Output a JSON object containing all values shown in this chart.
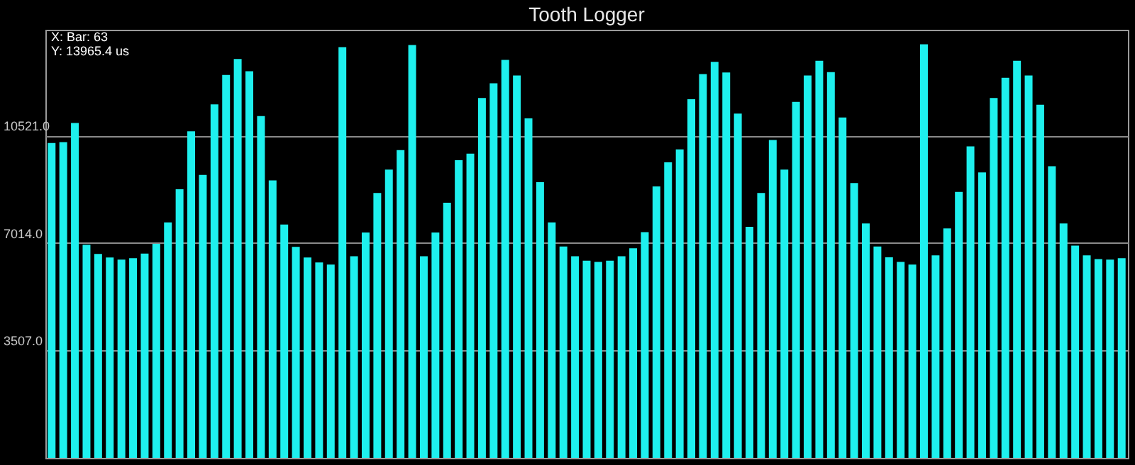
{
  "chart_data": {
    "type": "bar",
    "title": "Tooth Logger",
    "annotations": [
      "X: Bar: 63",
      "Y: 13965.4 us"
    ],
    "categories": [
      null,
      null,
      null,
      null,
      null,
      null,
      null,
      null,
      null,
      null,
      null,
      null,
      null,
      null,
      null,
      null,
      null,
      null,
      null,
      null,
      null,
      null,
      null,
      null,
      null,
      null,
      null,
      null,
      null,
      null,
      null,
      null,
      null,
      null,
      null,
      null,
      null,
      null,
      null,
      null,
      null,
      null,
      null,
      null,
      null,
      null,
      null,
      null,
      null,
      null,
      null,
      null,
      null,
      null,
      null,
      null,
      null,
      null,
      null,
      null,
      null,
      null,
      null,
      null,
      null,
      null,
      null,
      null,
      null,
      null,
      null,
      null,
      null,
      null,
      null,
      null,
      null,
      null,
      null,
      null,
      null,
      null,
      null,
      null,
      null,
      null,
      null,
      null,
      null,
      null,
      null,
      null,
      null
    ],
    "values": [
      10280,
      10310,
      10930,
      6960,
      6660,
      6540,
      6470,
      6520,
      6670,
      6990,
      7690,
      8770,
      10660,
      9240,
      11540,
      12500,
      13020,
      12620,
      11160,
      9060,
      7620,
      6890,
      6540,
      6380,
      6310,
      13410,
      6580,
      7360,
      8650,
      9410,
      10050,
      13480,
      6580,
      7360,
      8330,
      9720,
      9930,
      11750,
      12230,
      12990,
      12480,
      11080,
      9000,
      7690,
      6900,
      6580,
      6440,
      6400,
      6440,
      6580,
      6840,
      7370,
      8860,
      9650,
      10070,
      11710,
      12530,
      12930,
      12580,
      11240,
      7540,
      8650,
      10380,
      9410,
      11620,
      12480,
      12960,
      12590,
      11110,
      8970,
      7650,
      6900,
      6550,
      6400,
      6310,
      13500,
      6610,
      7490,
      8680,
      10170,
      9320,
      11750,
      12410,
      12960,
      12480,
      11530,
      9520,
      7650,
      6930,
      6610,
      6490,
      6470,
      6520
    ],
    "color": "#1ef0ee",
    "ylim": [
      0,
      13975
    ],
    "yticks": [
      {
        "value": 3507,
        "label": "3507.0"
      },
      {
        "value": 7014,
        "label": "7014.0"
      },
      {
        "value": 10521,
        "label": "10521.0"
      }
    ],
    "grid": "y",
    "tick_labels": "y"
  }
}
